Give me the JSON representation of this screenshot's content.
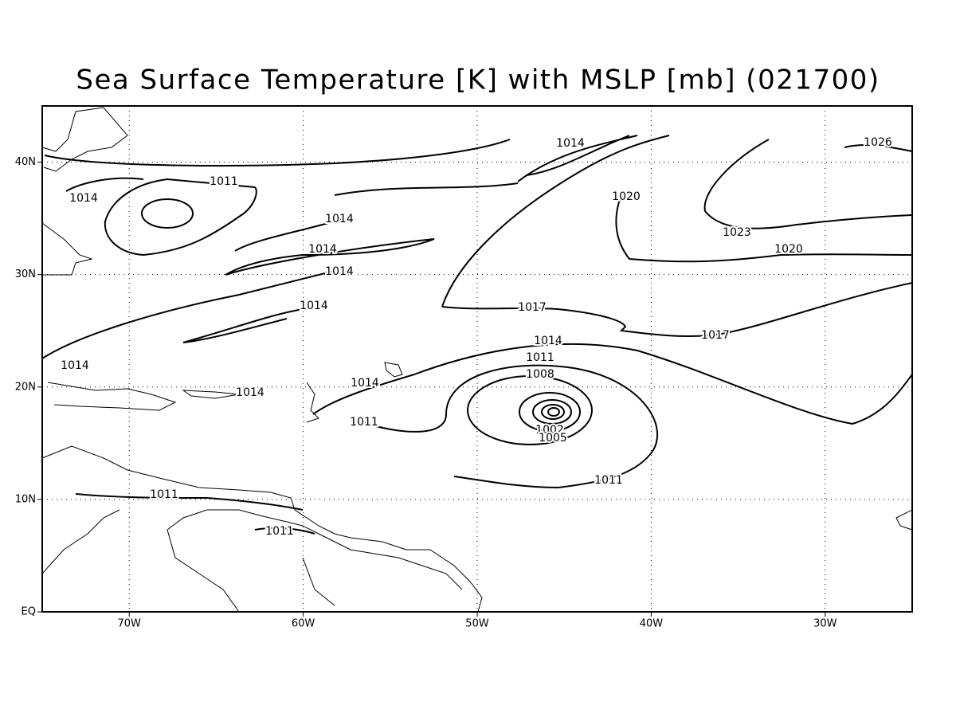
{
  "map": {
    "title": "Sea Surface Temperature [K] with MSLP [mb] (021700)",
    "xlim": [
      -75,
      -25
    ],
    "ylim": [
      0,
      45
    ],
    "xticks": [
      {
        "value": -70,
        "label": "70W"
      },
      {
        "value": -60,
        "label": "60W"
      },
      {
        "value": -50,
        "label": "50W"
      },
      {
        "value": -40,
        "label": "40W"
      },
      {
        "value": -30,
        "label": "30W"
      }
    ],
    "yticks": [
      {
        "value": 0,
        "label": "EQ"
      },
      {
        "value": 10,
        "label": "10N"
      },
      {
        "value": 20,
        "label": "20N"
      },
      {
        "value": 30,
        "label": "30N"
      },
      {
        "value": 40,
        "label": "40N"
      }
    ],
    "grid": true,
    "contour_labels": [
      1014,
      1026,
      1011,
      1014,
      1020,
      1014,
      1023,
      1014,
      1020,
      1014,
      1014,
      1017,
      1017,
      1014,
      1011,
      1014,
      1008,
      1014,
      1014,
      1011,
      1002,
      1005,
      1011,
      1011,
      1011
    ]
  }
}
